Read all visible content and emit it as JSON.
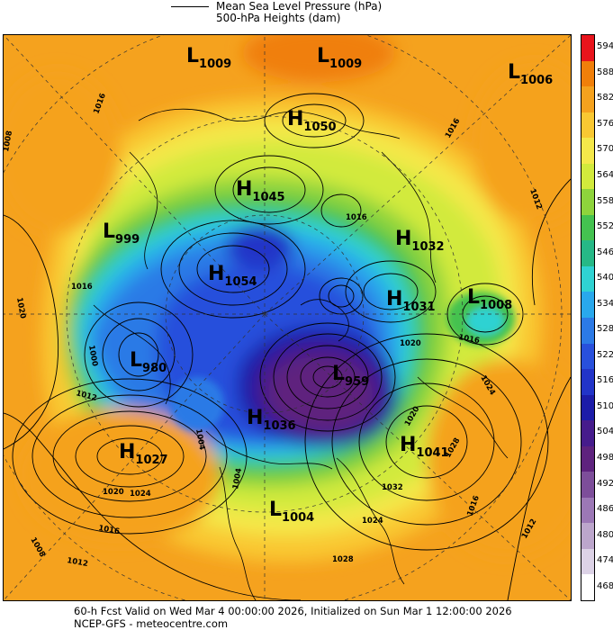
{
  "legend": {
    "line1": "Mean Sea Level Pressure (hPa)",
    "line2": "500-hPa Heights (dam)"
  },
  "colorbar": {
    "labels": [
      "594",
      "588",
      "582",
      "576",
      "570",
      "564",
      "558",
      "552",
      "546",
      "540",
      "534",
      "528",
      "522",
      "516",
      "510",
      "504",
      "498",
      "492",
      "486",
      "480",
      "474",
      "468"
    ],
    "colors": [
      "#e8141c",
      "#f07f0a",
      "#f5a21e",
      "#f9c832",
      "#f4e84a",
      "#d2ea3c",
      "#8ed43c",
      "#44c250",
      "#26b886",
      "#2fd2d2",
      "#29a8ec",
      "#2c7ae6",
      "#2850dc",
      "#2234c8",
      "#1c1ca8",
      "#461c8c",
      "#5e237e",
      "#7d4e9a",
      "#9c78b6",
      "#bca6cc",
      "#dcd2e6",
      "#ffffff"
    ]
  },
  "pressure_centers": [
    {
      "type": "L",
      "value": "1009"
    },
    {
      "type": "L",
      "value": "1009"
    },
    {
      "type": "L",
      "value": "1006"
    },
    {
      "type": "H",
      "value": "1050"
    },
    {
      "type": "H",
      "value": "1045"
    },
    {
      "type": "L",
      "value": "999"
    },
    {
      "type": "H",
      "value": "1032"
    },
    {
      "type": "H",
      "value": "1054"
    },
    {
      "type": "H",
      "value": "1031"
    },
    {
      "type": "L",
      "value": "1008"
    },
    {
      "type": "L",
      "value": "980"
    },
    {
      "type": "L",
      "value": "959"
    },
    {
      "type": "H",
      "value": "1036"
    },
    {
      "type": "H",
      "value": "1041"
    },
    {
      "type": "H",
      "value": "1027"
    },
    {
      "type": "L",
      "value": "1004"
    }
  ],
  "isobar_labels": [
    "1016",
    "1008",
    "1012",
    "1020",
    "1016",
    "1016",
    "1012",
    "1024",
    "1020",
    "1032",
    "1028",
    "1016",
    "1012",
    "1024",
    "1012",
    "1016",
    "1008",
    "1000",
    "1004",
    "1016",
    "1020",
    "1024",
    "1016",
    "1028",
    "1004",
    "1020"
  ],
  "footer": {
    "line1": "60-h Fcst Valid on Wed Mar  4 00:00:00 2026, Initialized on Sun Mar  1 12:00:00 2026",
    "line2": "NCEP-GFS  - meteocentre.com"
  }
}
